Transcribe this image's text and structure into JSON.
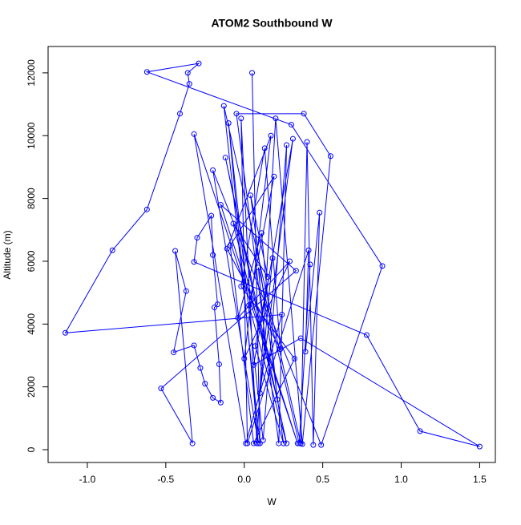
{
  "chart_data": {
    "type": "line",
    "title": "ATOM2 Southbound W",
    "x_label": "W",
    "y_label": "Altitude (m)",
    "xlim": [
      -1.25,
      1.6
    ],
    "ylim": [
      -408,
      12840
    ],
    "xticks": [
      {
        "value": -1,
        "label": "-1.0"
      },
      -0.5,
      {
        "value": 0,
        "label": "0.0"
      },
      0.5,
      {
        "value": 1,
        "label": "1.0"
      },
      1.5
    ],
    "yticks": [
      0,
      2000,
      4000,
      6000,
      8000,
      10000,
      12000
    ],
    "series": [
      {
        "color": "#0000ff",
        "x": [
          0.05,
          0.1,
          -0.13,
          0.36,
          0.4,
          0.44,
          0.48,
          0.39,
          0.41,
          0.02,
          -0.02,
          0.08,
          0.2,
          0.37,
          0.55,
          0.38,
          -0.05,
          0.22,
          0.27,
          0.12,
          -0.1,
          0.09,
          -0.2,
          0.49,
          0.88,
          0.3,
          -0.62,
          -0.29,
          -0.36,
          -0.35,
          -0.41,
          -0.62,
          -0.84,
          -1.14,
          0.24,
          0.01,
          -0.32,
          0.34,
          -0.15,
          0.33,
          -0.53,
          -0.33,
          -0.44,
          -0.37,
          -0.45,
          -0.32,
          -0.28,
          -0.25,
          -0.2,
          -0.15,
          -0.16,
          -0.19,
          -0.17,
          -0.2,
          -0.21,
          -0.3,
          -0.32,
          0.78,
          1.12,
          1.5,
          0.36,
          0.06,
          0.31,
          0.1,
          0.18,
          0.07,
          0.25,
          0.04,
          0.15,
          -0.07,
          0.21,
          0.11,
          -0.04,
          0.29,
          0.0,
          0.17,
          -0.11,
          0.23,
          0.13,
          -0.02,
          0.32,
          0.06,
          -0.09,
          0.19,
          0.03,
          0.27,
          -0.12,
          0.14,
          0.09,
          0.35,
          0.42
        ],
        "values": [
          12000,
          200,
          10950,
          200,
          9800,
          150,
          7550,
          3120,
          6350,
          200,
          10550,
          200,
          10550,
          180,
          9350,
          10700,
          10700,
          200,
          9700,
          300,
          10400,
          200,
          8900,
          150,
          5850,
          10350,
          12030,
          12300,
          12000,
          11650,
          10700,
          7650,
          6350,
          3720,
          4300,
          200,
          10050,
          200,
          7800,
          5700,
          1950,
          200,
          6330,
          5050,
          3100,
          3320,
          2600,
          2100,
          1650,
          1500,
          2720,
          4530,
          4630,
          6200,
          7450,
          6750,
          5980,
          3650,
          590,
          100,
          3550,
          2700,
          9900,
          1800,
          6100,
          3300,
          200,
          8100,
          5500,
          7200,
          1600,
          6900,
          4200,
          6000,
          2900,
          10000,
          6400,
          3200,
          9600,
          5200,
          2900,
          200,
          6500,
          8700,
          4600,
          200,
          9300,
          3000,
          5800,
          200,
          5900
        ]
      }
    ]
  }
}
